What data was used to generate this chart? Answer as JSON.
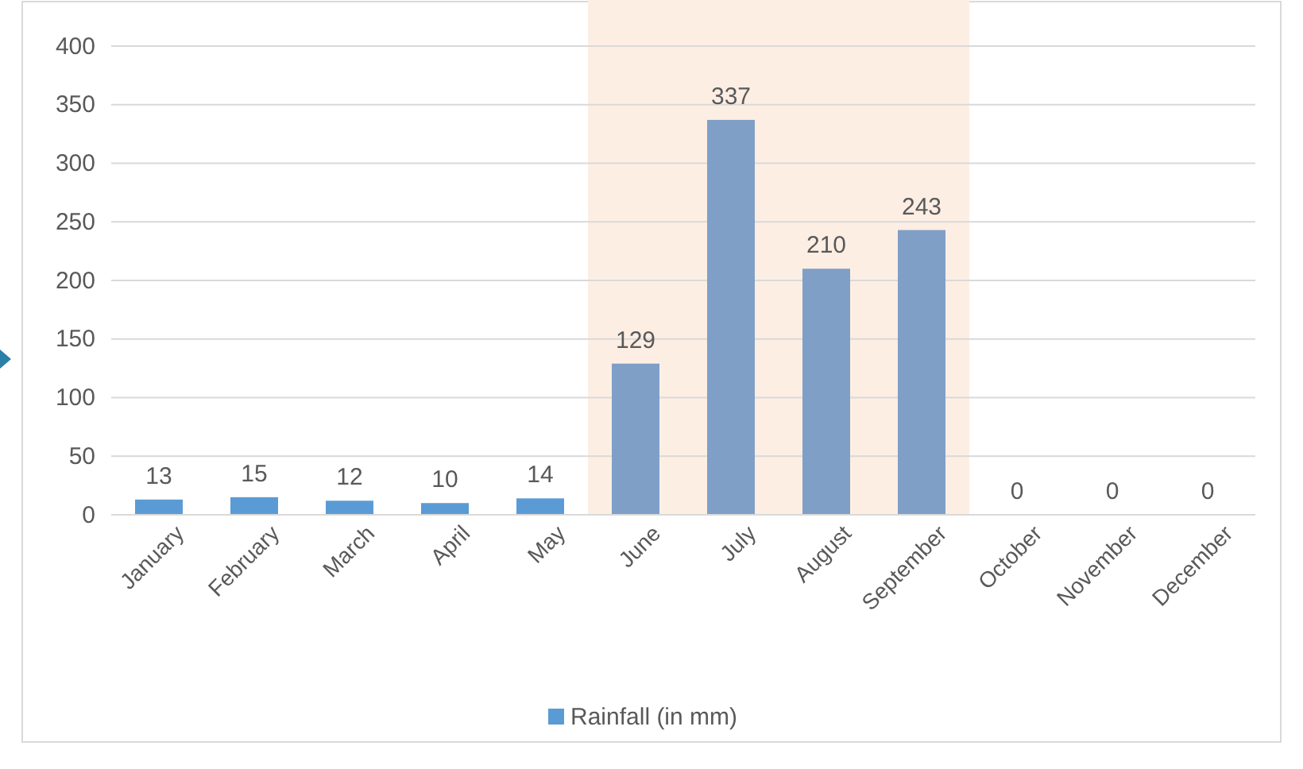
{
  "chart_data": {
    "type": "bar",
    "categories": [
      "January",
      "February",
      "March",
      "April",
      "May",
      "June",
      "July",
      "August",
      "September",
      "October",
      "November",
      "December"
    ],
    "series": [
      {
        "name": "Rainfall (in mm)",
        "color": "#5b9bd5",
        "values": [
          13,
          15,
          12,
          10,
          14,
          129,
          337,
          210,
          243,
          0,
          0,
          0
        ],
        "colors": [
          "#5b9bd5",
          "#5b9bd5",
          "#5b9bd5",
          "#5b9bd5",
          "#5b9bd5",
          "#7f9fc6",
          "#7f9fc6",
          "#7f9fc6",
          "#7f9fc6",
          "#5b9bd5",
          "#5b9bd5",
          "#5b9bd5"
        ]
      }
    ],
    "ylim": [
      0,
      400
    ],
    "yticks": [
      0,
      50,
      100,
      150,
      200,
      250,
      300,
      350,
      400
    ],
    "grid": "y",
    "legend": "bottom",
    "data_labels": true,
    "bands": [
      {
        "axis": "x",
        "from": "June",
        "to": "September",
        "color": "#fdeee4"
      }
    ]
  }
}
